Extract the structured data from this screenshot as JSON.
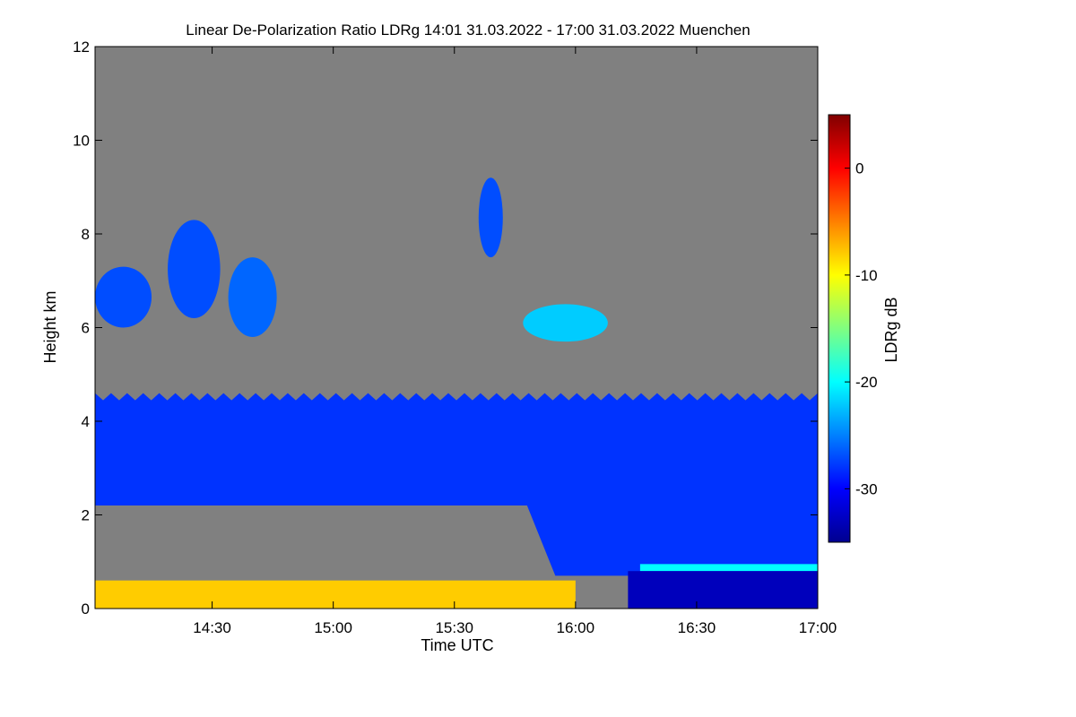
{
  "chart_data": {
    "type": "heatmap",
    "title": "Linear De-Polarization Ratio LDRg   14:01 31.03.2022 - 17:00 31.03.2022 Muenchen",
    "xlabel": "Time UTC",
    "ylabel": "Height km",
    "colorbar_label": "LDRg dB",
    "x_range_minutes_utc": [
      841,
      1020
    ],
    "x_ticks": [
      {
        "label": "14:30",
        "value": 870
      },
      {
        "label": "15:00",
        "value": 900
      },
      {
        "label": "15:30",
        "value": 930
      },
      {
        "label": "16:00",
        "value": 960
      },
      {
        "label": "16:30",
        "value": 990
      },
      {
        "label": "17:00",
        "value": 1020
      }
    ],
    "ylim": [
      0,
      12
    ],
    "y_ticks": [
      0,
      2,
      4,
      6,
      8,
      10,
      12
    ],
    "colorbar_range": [
      -35,
      5
    ],
    "colorbar_ticks": [
      0,
      -10,
      -20,
      -30
    ],
    "background_no_signal_color": "#808080",
    "colormap": [
      "#00008f",
      "#0000ff",
      "#0080ff",
      "#00ffff",
      "#80ff80",
      "#ffff00",
      "#ff8000",
      "#ff0000",
      "#800000"
    ],
    "features": [
      {
        "name": "aerosol-layer",
        "x": [
          841,
          1020
        ],
        "height_km": [
          2.2,
          4.6
        ],
        "ldr_db": -28
      },
      {
        "name": "boundary-layer-low",
        "x": [
          841,
          960
        ],
        "height_km": [
          0,
          0.6
        ],
        "ldr_db": -8
      },
      {
        "name": "cirrus-cloud-1",
        "x": [
          841,
          855
        ],
        "height_km": [
          6.0,
          7.3
        ],
        "ldr_db": -27
      },
      {
        "name": "cirrus-cloud-2",
        "x": [
          859,
          872
        ],
        "height_km": [
          6.2,
          8.3
        ],
        "ldr_db": -27
      },
      {
        "name": "cirrus-cloud-3",
        "x": [
          874,
          886
        ],
        "height_km": [
          5.8,
          7.5
        ],
        "ldr_db": -26
      },
      {
        "name": "cirrus-cloud-4",
        "x": [
          936,
          942
        ],
        "height_km": [
          7.5,
          9.2
        ],
        "ldr_db": -27
      },
      {
        "name": "mid-cloud-1",
        "x": [
          947,
          968
        ],
        "height_km": [
          5.7,
          6.5
        ],
        "ldr_db": -22
      },
      {
        "name": "low-cloud-base",
        "x": [
          976,
          1020
        ],
        "height_km": [
          0.8,
          0.95
        ],
        "ldr_db": -20
      },
      {
        "name": "rain-region",
        "x": [
          973,
          1020
        ],
        "height_km": [
          0,
          0.8
        ],
        "ldr_db": -33
      }
    ]
  }
}
